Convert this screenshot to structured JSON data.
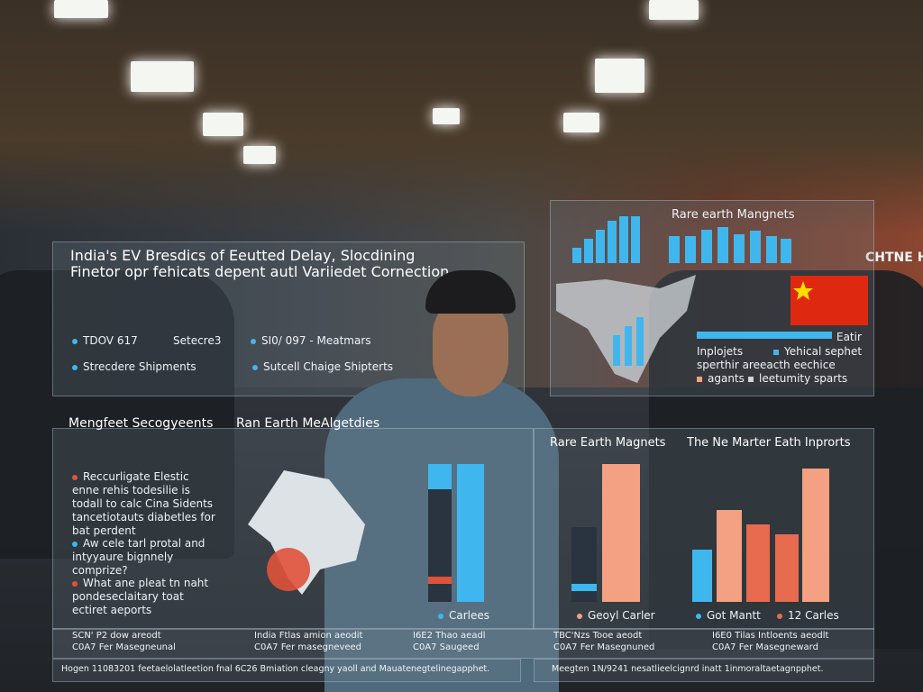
{
  "top_right_sign": "CHTNE H",
  "panel_main": {
    "title": "India's EV Bresdics of Eeutted Delay, Slocdining",
    "subtitle": "Finetor opr fehicats depent autl Variiedet Cornection",
    "stats": [
      "TDOV 617",
      "Setecre3",
      "SI0/ 097 - Meatmars"
    ],
    "captions": [
      "Strecdere Shipments",
      "Sutcell Chaige Shipterts"
    ]
  },
  "panel_magnets": {
    "title": "Rare earth Mangnets",
    "legend": [
      "Eatir",
      "Inplojets",
      "Yehical sephet",
      "sperthir areeacth eechice",
      "agants",
      "leetumity sparts"
    ]
  },
  "panel_left": {
    "headings": [
      "Mengfeet Secogyeents",
      "Ran Earth MeAlgetdies"
    ],
    "bullets": [
      "Reccurligate Elestic enne rehis todesilie is todall to calc Cina Sidents tancetiotauts diabetles for bat perdent",
      "Aw cele tarl protal and intyyaure bignnely comprize?",
      "What ane pleat tn naht pondeseclaitary toat ectiret aeports"
    ],
    "legend": "Carlees"
  },
  "panel_right": {
    "headings": [
      "Rare Earth Magnets",
      "The Ne Marter Eath Inprorts"
    ],
    "legend": [
      "Geoyl Carler",
      "Got Mantt",
      "12 Carles"
    ]
  },
  "footers": [
    [
      "SCN' P2 dow areodt",
      "C0A7 Fer Masegneunal"
    ],
    [
      "India Ftlas amion aeodit",
      "C0A7 Fer masegneveed"
    ],
    [
      "I6E2 Thao aeadl",
      "C0A7 Saugeed"
    ],
    [
      "TBC'Nzs Tooe aeodt",
      "C0A7 Fer Masegnuned"
    ],
    [
      "I6E0 Tilas Intloents aeodlt",
      "C0A7 Fer Masegneward"
    ]
  ],
  "bottom_notes": [
    "Hogen 11083201 feetaelolatleetion fnal 6C26 Bmiation cleagny yaoll and Mauatenegtelinegapphet.",
    "Meegten 1N/9241 nesatlieelcignrd inatt 1inmoraltaetagnpphet."
  ]
}
